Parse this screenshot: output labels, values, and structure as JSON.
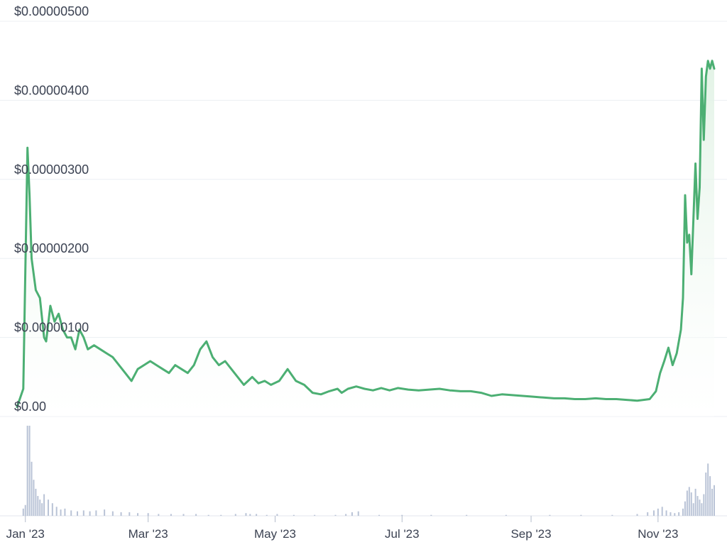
{
  "colors": {
    "line": "#4caf73",
    "area_top": "#dff1e3",
    "volume": "#b9c3d6",
    "grid": "#eceff3",
    "text": "#3b4252"
  },
  "chart_data": {
    "type": "area",
    "title": "",
    "xlabel": "",
    "ylabel": "",
    "grid": true,
    "legend": "none",
    "ylim": [
      0,
      5e-06
    ],
    "xlim": [
      "2022-12-28",
      "2023-11-28"
    ],
    "y_ticks": [
      "$0.00",
      "$0.00000100",
      "$0.00000200",
      "$0.00000300",
      "$0.00000400",
      "$0.00000500"
    ],
    "x_ticks": [
      {
        "date": "2023-01-01",
        "label": "Jan '23"
      },
      {
        "date": "2023-03-01",
        "label": "Mar '23"
      },
      {
        "date": "2023-05-01",
        "label": "May '23"
      },
      {
        "date": "2023-07-01",
        "label": "Jul '23"
      },
      {
        "date": "2023-09-01",
        "label": "Sep '23"
      },
      {
        "date": "2023-11-01",
        "label": "Nov '23"
      }
    ],
    "price": {
      "x": [
        "2022-12-28",
        "2022-12-31",
        "2023-01-02",
        "2023-01-03",
        "2023-01-04",
        "2023-01-06",
        "2023-01-08",
        "2023-01-10",
        "2023-01-11",
        "2023-01-13",
        "2023-01-15",
        "2023-01-17",
        "2023-01-19",
        "2023-01-21",
        "2023-01-23",
        "2023-01-25",
        "2023-01-27",
        "2023-01-29",
        "2023-01-31",
        "2023-02-03",
        "2023-02-06",
        "2023-02-09",
        "2023-02-12",
        "2023-02-15",
        "2023-02-18",
        "2023-02-21",
        "2023-02-24",
        "2023-02-27",
        "2023-03-02",
        "2023-03-05",
        "2023-03-08",
        "2023-03-11",
        "2023-03-14",
        "2023-03-17",
        "2023-03-20",
        "2023-03-23",
        "2023-03-26",
        "2023-03-29",
        "2023-04-01",
        "2023-04-04",
        "2023-04-07",
        "2023-04-10",
        "2023-04-13",
        "2023-04-16",
        "2023-04-18",
        "2023-04-20",
        "2023-04-23",
        "2023-04-26",
        "2023-04-29",
        "2023-05-03",
        "2023-05-07",
        "2023-05-11",
        "2023-05-15",
        "2023-05-19",
        "2023-05-23",
        "2023-05-27",
        "2023-05-31",
        "2023-06-02",
        "2023-06-05",
        "2023-06-09",
        "2023-06-13",
        "2023-06-17",
        "2023-06-21",
        "2023-06-25",
        "2023-06-29",
        "2023-07-04",
        "2023-07-09",
        "2023-07-14",
        "2023-07-19",
        "2023-07-24",
        "2023-07-29",
        "2023-08-03",
        "2023-08-08",
        "2023-08-13",
        "2023-08-18",
        "2023-08-23",
        "2023-08-28",
        "2023-09-02",
        "2023-09-07",
        "2023-09-12",
        "2023-09-17",
        "2023-09-22",
        "2023-09-27",
        "2023-10-02",
        "2023-10-07",
        "2023-10-12",
        "2023-10-17",
        "2023-10-22",
        "2023-10-25",
        "2023-10-28",
        "2023-10-31",
        "2023-11-02",
        "2023-11-04",
        "2023-11-06",
        "2023-11-08",
        "2023-11-10",
        "2023-11-12",
        "2023-11-13",
        "2023-11-14",
        "2023-11-15",
        "2023-11-16",
        "2023-11-17",
        "2023-11-18",
        "2023-11-19",
        "2023-11-20",
        "2023-11-21",
        "2023-11-22",
        "2023-11-23",
        "2023-11-24",
        "2023-11-25",
        "2023-11-26",
        "2023-11-27",
        "2023-11-28"
      ],
      "y": [
        1.2e-07,
        3.5e-07,
        3.4e-06,
        2.8e-06,
        2e-06,
        1.6e-06,
        1.5e-06,
        1e-06,
        9.5e-07,
        1.4e-06,
        1.2e-06,
        1.3e-06,
        1.1e-06,
        1e-06,
        1e-06,
        8.5e-07,
        1.1e-06,
        1e-06,
        8.5e-07,
        9e-07,
        8.5e-07,
        8e-07,
        7.5e-07,
        6.5e-07,
        5.5e-07,
        4.5e-07,
        6e-07,
        6.5e-07,
        7e-07,
        6.5e-07,
        6e-07,
        5.5e-07,
        6.5e-07,
        6e-07,
        5.5e-07,
        6.5e-07,
        8.5e-07,
        9.5e-07,
        7.5e-07,
        6.5e-07,
        7e-07,
        6e-07,
        5e-07,
        4e-07,
        4.5e-07,
        5e-07,
        4.2e-07,
        4.5e-07,
        4e-07,
        4.5e-07,
        6e-07,
        4.5e-07,
        4e-07,
        3e-07,
        2.8e-07,
        3.2e-07,
        3.5e-07,
        3e-07,
        3.5e-07,
        3.8e-07,
        3.5e-07,
        3.3e-07,
        3.6e-07,
        3.3e-07,
        3.6e-07,
        3.4e-07,
        3.3e-07,
        3.4e-07,
        3.5e-07,
        3.3e-07,
        3.2e-07,
        3.2e-07,
        3e-07,
        2.6e-07,
        2.8e-07,
        2.7e-07,
        2.6e-07,
        2.5e-07,
        2.4e-07,
        2.3e-07,
        2.3e-07,
        2.2e-07,
        2.2e-07,
        2.3e-07,
        2.2e-07,
        2.2e-07,
        2.1e-07,
        2e-07,
        2.1e-07,
        2.2e-07,
        3.2e-07,
        5.5e-07,
        7e-07,
        8.7e-07,
        6.5e-07,
        8e-07,
        1.1e-06,
        1.5e-06,
        2.8e-06,
        2.2e-06,
        2.3e-06,
        1.8e-06,
        2.5e-06,
        3.2e-06,
        2.5e-06,
        2.9e-06,
        4.4e-06,
        3.5e-06,
        4.3e-06,
        4.5e-06,
        4.4e-06,
        4.5e-06,
        4.4e-06
      ]
    },
    "volume": {
      "x": [
        "2022-12-31",
        "2023-01-01",
        "2023-01-02",
        "2023-01-03",
        "2023-01-04",
        "2023-01-05",
        "2023-01-06",
        "2023-01-07",
        "2023-01-08",
        "2023-01-09",
        "2023-01-10",
        "2023-01-12",
        "2023-01-14",
        "2023-01-16",
        "2023-01-18",
        "2023-01-20",
        "2023-01-23",
        "2023-01-26",
        "2023-01-29",
        "2023-02-01",
        "2023-02-04",
        "2023-02-08",
        "2023-02-12",
        "2023-02-16",
        "2023-02-20",
        "2023-02-24",
        "2023-03-01",
        "2023-03-06",
        "2023-03-12",
        "2023-03-18",
        "2023-03-24",
        "2023-03-30",
        "2023-04-05",
        "2023-04-12",
        "2023-04-17",
        "2023-04-19",
        "2023-04-22",
        "2023-04-27",
        "2023-05-02",
        "2023-05-10",
        "2023-05-20",
        "2023-05-30",
        "2023-06-04",
        "2023-06-07",
        "2023-06-10",
        "2023-06-20",
        "2023-07-01",
        "2023-07-15",
        "2023-08-01",
        "2023-08-20",
        "2023-09-10",
        "2023-09-25",
        "2023-10-10",
        "2023-10-22",
        "2023-10-27",
        "2023-10-30",
        "2023-11-01",
        "2023-11-03",
        "2023-11-05",
        "2023-11-07",
        "2023-11-09",
        "2023-11-11",
        "2023-11-13",
        "2023-11-14",
        "2023-11-15",
        "2023-11-16",
        "2023-11-17",
        "2023-11-18",
        "2023-11-19",
        "2023-11-20",
        "2023-11-21",
        "2023-11-22",
        "2023-11-23",
        "2023-11-24",
        "2023-11-25",
        "2023-11-26",
        "2023-11-27",
        "2023-11-28"
      ],
      "values": [
        8,
        12,
        100,
        100,
        60,
        40,
        30,
        22,
        18,
        14,
        24,
        18,
        14,
        10,
        7,
        8,
        6,
        5,
        6,
        5,
        6,
        7,
        5,
        4,
        4,
        3,
        3,
        2,
        2,
        2,
        2,
        1,
        1,
        2,
        3,
        2,
        2,
        1,
        2,
        1,
        1,
        1,
        2,
        4,
        5,
        1,
        1,
        1,
        1,
        1,
        1,
        1,
        1,
        2,
        4,
        6,
        8,
        10,
        6,
        4,
        3,
        4,
        8,
        16,
        28,
        32,
        26,
        14,
        30,
        22,
        18,
        14,
        24,
        48,
        58,
        44,
        30,
        34
      ]
    }
  }
}
